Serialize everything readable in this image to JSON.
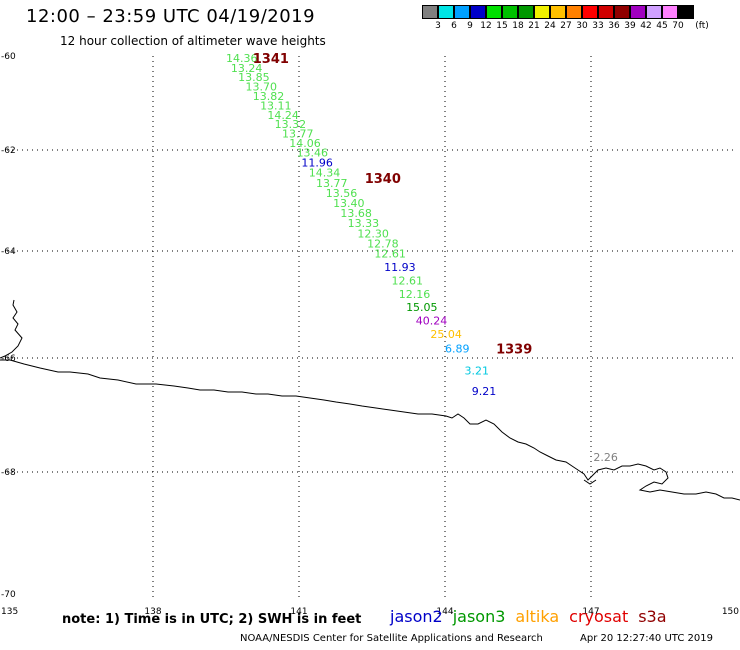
{
  "header": {
    "title": "12:00 – 23:59 UTC 04/19/2019",
    "subtitle": "12 hour collection of altimeter wave heights"
  },
  "legend": {
    "unit": "(ft)",
    "bins": [
      {
        "label": "3",
        "color": "#808080"
      },
      {
        "label": "6",
        "color": "#00e5e5"
      },
      {
        "label": "9",
        "color": "#00a0ff"
      },
      {
        "label": "12",
        "color": "#0000c8"
      },
      {
        "label": "15",
        "color": "#00e000"
      },
      {
        "label": "18",
        "color": "#00c000"
      },
      {
        "label": "21",
        "color": "#009800"
      },
      {
        "label": "24",
        "color": "#f0f000"
      },
      {
        "label": "27",
        "color": "#ffc000"
      },
      {
        "label": "30",
        "color": "#ff8000"
      },
      {
        "label": "33",
        "color": "#ff0000"
      },
      {
        "label": "36",
        "color": "#d00000"
      },
      {
        "label": "39",
        "color": "#900000"
      },
      {
        "label": "42",
        "color": "#a000c0"
      },
      {
        "label": "45",
        "color": "#d0a0ff"
      },
      {
        "label": "70",
        "color": "#ff80ff"
      },
      {
        "label": "",
        "color": "#000000"
      }
    ]
  },
  "axes": {
    "lon_labels": [
      "135",
      "138",
      "141",
      "144",
      "147",
      "150"
    ],
    "lat_labels": [
      "-60",
      "-62",
      "-64",
      "-66",
      "-68",
      "-70"
    ]
  },
  "chart_data": {
    "type": "map",
    "lon_range": [
      135,
      150
    ],
    "lat_range": [
      -70,
      -60
    ],
    "grid": true,
    "observations": [
      {
        "lon": 139.5,
        "lat": -60.04,
        "value": "14.36",
        "color": "#50e050"
      },
      {
        "lon": 139.6,
        "lat": -60.25,
        "value": "13.24",
        "color": "#50e050"
      },
      {
        "lon": 139.75,
        "lat": -60.45,
        "value": "13.85",
        "color": "#50e050"
      },
      {
        "lon": 139.9,
        "lat": -60.65,
        "value": "13.70",
        "color": "#50e050"
      },
      {
        "lon": 140.05,
        "lat": -60.85,
        "value": "13.82",
        "color": "#50e050"
      },
      {
        "lon": 140.2,
        "lat": -61.05,
        "value": "13.11",
        "color": "#50e050"
      },
      {
        "lon": 140.35,
        "lat": -61.25,
        "value": "14.24",
        "color": "#50e050"
      },
      {
        "lon": 140.5,
        "lat": -61.45,
        "value": "13.32",
        "color": "#50e050"
      },
      {
        "lon": 140.65,
        "lat": -61.65,
        "value": "13.77",
        "color": "#50e050"
      },
      {
        "lon": 140.8,
        "lat": -61.85,
        "value": "14.06",
        "color": "#50e050"
      },
      {
        "lon": 140.95,
        "lat": -62.05,
        "value": "13.46",
        "color": "#50e050"
      },
      {
        "lon": 141.05,
        "lat": -62.25,
        "value": "11.96",
        "color": "#0000c8"
      },
      {
        "lon": 141.2,
        "lat": -62.45,
        "value": "14.34",
        "color": "#50e050"
      },
      {
        "lon": 141.35,
        "lat": -62.65,
        "value": "13.77",
        "color": "#50e050"
      },
      {
        "lon": 141.55,
        "lat": -62.85,
        "value": "13.56",
        "color": "#50e050"
      },
      {
        "lon": 141.7,
        "lat": -63.05,
        "value": "13.40",
        "color": "#50e050"
      },
      {
        "lon": 141.85,
        "lat": -63.25,
        "value": "13.68",
        "color": "#50e050"
      },
      {
        "lon": 142.0,
        "lat": -63.45,
        "value": "13.33",
        "color": "#50e050"
      },
      {
        "lon": 142.2,
        "lat": -63.65,
        "value": "12.30",
        "color": "#50e050"
      },
      {
        "lon": 142.4,
        "lat": -63.85,
        "value": "12.78",
        "color": "#50e050"
      },
      {
        "lon": 142.55,
        "lat": -64.05,
        "value": "12.61",
        "color": "#50e050"
      },
      {
        "lon": 142.75,
        "lat": -64.3,
        "value": "11.93",
        "color": "#0000c8"
      },
      {
        "lon": 142.9,
        "lat": -64.55,
        "value": "12.61",
        "color": "#50e050"
      },
      {
        "lon": 143.05,
        "lat": -64.8,
        "value": "12.16",
        "color": "#50e050"
      },
      {
        "lon": 143.2,
        "lat": -65.05,
        "value": "15.05",
        "color": "#009800"
      },
      {
        "lon": 143.4,
        "lat": -65.3,
        "value": "40.24",
        "color": "#a000c0"
      },
      {
        "lon": 143.7,
        "lat": -65.55,
        "value": "25.04",
        "color": "#ffc000"
      },
      {
        "lon": 144.0,
        "lat": -65.82,
        "value": "6.89",
        "color": "#00a0ff"
      },
      {
        "lon": 144.4,
        "lat": -66.22,
        "value": "3.21",
        "color": "#00c8e0"
      },
      {
        "lon": 144.55,
        "lat": -66.58,
        "value": "9.21",
        "color": "#0000c8"
      },
      {
        "lon": 147.05,
        "lat": -67.74,
        "value": "2.26",
        "color": "#808080"
      }
    ],
    "time_marks": [
      {
        "lon": 140.05,
        "lat": -60.04,
        "label": "1341"
      },
      {
        "lon": 142.35,
        "lat": -62.55,
        "label": "1340"
      },
      {
        "lon": 145.05,
        "lat": -65.82,
        "label": "1339"
      }
    ]
  },
  "footer": {
    "note": "note:  1) Time is in UTC;  2) SWH is in feet",
    "satellites": [
      {
        "name": "jason2",
        "color": "#0000c8"
      },
      {
        "name": "jason3",
        "color": "#009800"
      },
      {
        "name": "altika",
        "color": "#ffa000"
      },
      {
        "name": "cryosat",
        "color": "#e00000"
      },
      {
        "name": "s3a",
        "color": "#900000"
      }
    ],
    "credit": "NOAA/NESDIS Center for Satellite Applications and Research",
    "timestamp": "Apr 20 12:27:40 UTC 2019"
  }
}
